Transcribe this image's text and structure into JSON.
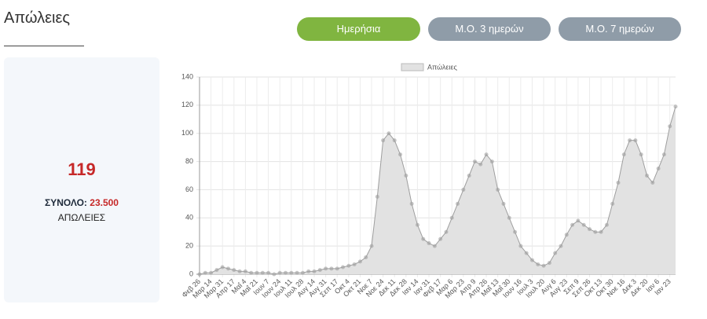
{
  "header": {
    "title": "Απώλειες"
  },
  "buttons": [
    "Ημερήσια",
    "Μ.Ο. 3 ημερών",
    "Μ.Ο. 7 ημερών"
  ],
  "summary": {
    "value": 119,
    "total_label": "ΣΥΝΟΛΟ:",
    "total": "23.500",
    "label": "ΑΠΩΛΕΙΕΣ"
  },
  "chart_data": {
    "type": "line",
    "categories": [
      "Φεβ 26",
      null,
      "Μαρ 14",
      null,
      "Μαρ 31",
      null,
      "Απρ 17",
      null,
      "Μαΐ 4",
      null,
      "Μαΐ 21",
      null,
      "Ιουν 7",
      null,
      "Ιουν 24",
      null,
      "Ιουλ 11",
      null,
      "Ιουλ 28",
      null,
      "Αυγ 14",
      null,
      "Αυγ 31",
      null,
      "Σεπ 17",
      null,
      "Οκτ 4",
      null,
      "Οκτ 21",
      null,
      "Νοε 7",
      null,
      "Νοε 24",
      null,
      "Δεκ 11",
      null,
      "Δεκ 28",
      null,
      "Ιαν 14",
      null,
      "Ιαν 31",
      null,
      "Φεβ 17",
      null,
      "Μαρ 6",
      null,
      "Μαρ 23",
      null,
      "Απρ 9",
      null,
      "Απρ 26",
      null,
      "Μαΐ 13",
      null,
      "Μαΐ 30",
      null,
      "Ιουν 16",
      null,
      "Ιουλ 3",
      null,
      "Ιουλ 20",
      null,
      "Αυγ 6",
      null,
      "Αυγ 23",
      null,
      "Σεπ 9",
      null,
      "Σεπ 26",
      null,
      "Οκτ 13",
      null,
      "Οκτ 30",
      null,
      "Νοε 16",
      null,
      "Δεκ 3",
      null,
      "Δεκ 20",
      null,
      "Ιαν 6",
      null,
      "Ιαν 23",
      null
    ],
    "series": [
      {
        "name": "Απώλειες",
        "color": "#9e9e9e",
        "values": [
          0,
          1,
          1,
          3,
          5,
          4,
          3,
          2,
          2,
          1,
          1,
          1,
          1,
          0,
          1,
          1,
          1,
          1,
          1,
          2,
          2,
          3,
          4,
          4,
          4,
          5,
          6,
          7,
          9,
          12,
          20,
          55,
          95,
          100,
          95,
          85,
          70,
          50,
          35,
          25,
          22,
          20,
          25,
          30,
          40,
          50,
          60,
          70,
          80,
          78,
          85,
          80,
          60,
          50,
          40,
          30,
          20,
          15,
          10,
          7,
          6,
          8,
          15,
          20,
          28,
          35,
          38,
          35,
          32,
          30,
          30,
          35,
          50,
          65,
          85,
          95,
          95,
          85,
          70,
          65,
          75,
          85,
          105,
          119
        ]
      }
    ],
    "ylim": [
      0,
      140
    ],
    "yticks": [
      0,
      20,
      40,
      60,
      80,
      100,
      120,
      140
    ],
    "grid": true,
    "legend": "top"
  }
}
